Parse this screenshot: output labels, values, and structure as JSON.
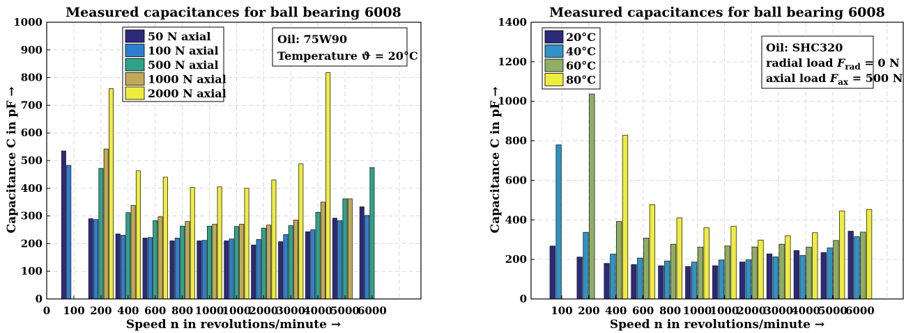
{
  "chart_data": [
    {
      "type": "bar",
      "title": "Measured capacitances for ball bearing 6008",
      "xlabel": "Speed n in revolutions/minute →",
      "ylabel": "Capacitance C in pF →",
      "ylim": [
        0,
        1000
      ],
      "yticks": [
        "0",
        "100",
        "200",
        "300",
        "400",
        "500",
        "600",
        "700",
        "800",
        "900",
        "1000"
      ],
      "xtick_origin": "0",
      "categories": [
        "100",
        "200",
        "400",
        "600",
        "800",
        "1000",
        "1000",
        "2000",
        "3000",
        "4000",
        "5000",
        "6000"
      ],
      "grid": true,
      "legend_position": "top-left",
      "series": [
        {
          "name": "50 N axial",
          "color": "#2c2a7a",
          "values": [
            535,
            290,
            235,
            220,
            210,
            210,
            210,
            195,
            207,
            243,
            292,
            333
          ]
        },
        {
          "name": "100 N axial",
          "color": "#2e7fcf",
          "values": [
            483,
            287,
            230,
            222,
            220,
            212,
            217,
            215,
            233,
            250,
            283,
            302
          ]
        },
        {
          "name": "500 N axial",
          "color": "#2fa38a",
          "values": [
            0,
            472,
            312,
            283,
            263,
            263,
            262,
            256,
            265,
            313,
            362,
            475
          ]
        },
        {
          "name": "1000 N axial",
          "color": "#c2a955",
          "values": [
            0,
            542,
            338,
            297,
            280,
            270,
            270,
            267,
            285,
            350,
            362,
            0
          ]
        },
        {
          "name": "2000 N axial",
          "color": "#f0ec3c",
          "values": [
            0,
            760,
            463,
            440,
            403,
            405,
            400,
            430,
            488,
            818,
            0,
            0
          ]
        }
      ],
      "annotation": [
        "Oil: 75W90",
        "Temperature ϑ = 20°C"
      ]
    },
    {
      "type": "bar",
      "title": "Measured capacitances for ball bearing 6008",
      "xlabel": "Speed n in revolutions/minute →",
      "ylabel": "Capacitance C in pF →",
      "ylim": [
        0,
        1400
      ],
      "yticks": [
        "0",
        "200",
        "400",
        "600",
        "800",
        "1000",
        "1200",
        "1400"
      ],
      "categories": [
        "100",
        "200",
        "400",
        "600",
        "800",
        "1000",
        "1000",
        "2000",
        "3000",
        "4000",
        "5000",
        "6000"
      ],
      "grid": true,
      "legend_position": "top-left",
      "series": [
        {
          "name": "20°C",
          "color": "#2c2a7a",
          "values": [
            268,
            212,
            180,
            174,
            168,
            164,
            168,
            187,
            228,
            245,
            235,
            343
          ]
        },
        {
          "name": "40°C",
          "color": "#2e93c6",
          "values": [
            780,
            337,
            227,
            207,
            192,
            187,
            197,
            198,
            213,
            220,
            258,
            315
          ]
        },
        {
          "name": "60°C",
          "color": "#8fad63",
          "values": [
            0,
            1037,
            392,
            308,
            277,
            262,
            268,
            263,
            277,
            262,
            296,
            338
          ]
        },
        {
          "name": "80°C",
          "color": "#f0ec3c",
          "values": [
            0,
            0,
            828,
            477,
            410,
            360,
            368,
            298,
            320,
            335,
            445,
            453
          ]
        }
      ],
      "annotation": [
        "Oil: SHC320",
        "radial load F_rad = 0 N",
        "axial load F_ax = 500 N"
      ]
    }
  ]
}
